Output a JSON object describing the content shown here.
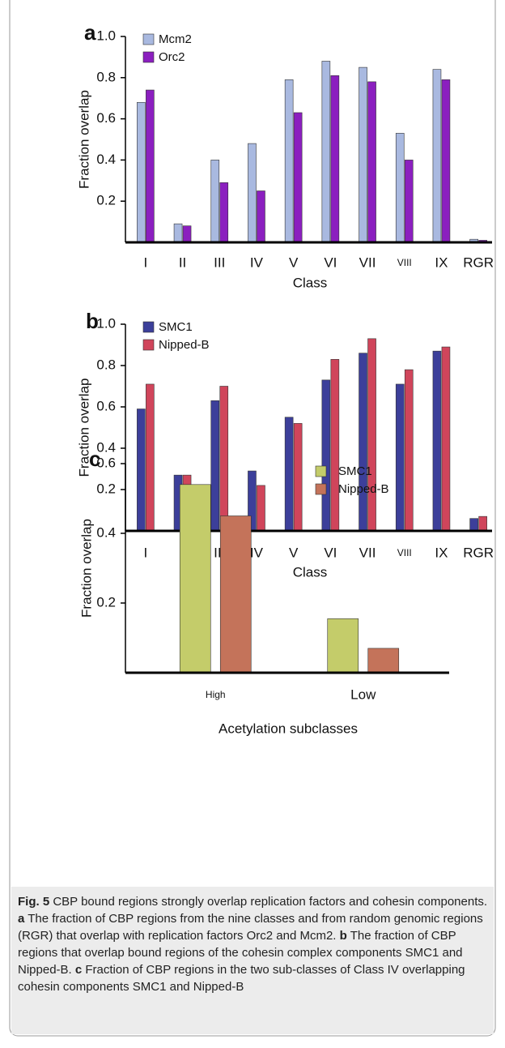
{
  "chart_data": [
    {
      "type": "bar",
      "panel_label": "a",
      "ylabel": "Fraction overlap",
      "xlabel": "Class",
      "categories": [
        "I",
        "II",
        "III",
        "IV",
        "V",
        "VI",
        "VII",
        "VIII",
        "IX",
        "RGR"
      ],
      "series": [
        {
          "name": "Mcm2",
          "color": "#a9b9e0",
          "values": [
            0.68,
            0.09,
            0.4,
            0.48,
            0.79,
            0.88,
            0.85,
            0.53,
            0.84,
            0.015
          ]
        },
        {
          "name": "Orc2",
          "color": "#8b1fbf",
          "values": [
            0.74,
            0.08,
            0.29,
            0.25,
            0.63,
            0.81,
            0.78,
            0.4,
            0.79,
            0.01
          ]
        }
      ],
      "ylim": [
        0,
        1
      ],
      "yticks": [
        0.2,
        0.4,
        0.6,
        0.8,
        {
          "value": 1,
          "label": "1.0"
        }
      ],
      "legend": "upper left"
    },
    {
      "type": "bar",
      "panel_label": "b",
      "ylabel": "Fraction overlap",
      "xlabel": "Class",
      "categories": [
        "I",
        "II",
        "III",
        "IV",
        "V",
        "VI",
        "VII",
        "VIII",
        "IX",
        "RGR"
      ],
      "series": [
        {
          "name": "SMC1",
          "color": "#3c3f9a",
          "values": [
            0.59,
            0.27,
            0.63,
            0.29,
            0.55,
            0.73,
            0.86,
            0.71,
            0.87,
            0.06
          ]
        },
        {
          "name": "Nipped-B",
          "color": "#d0455b",
          "values": [
            0.71,
            0.27,
            0.7,
            0.22,
            0.52,
            0.83,
            0.93,
            0.78,
            0.89,
            0.07
          ]
        }
      ],
      "ylim": [
        0,
        1
      ],
      "yticks": [
        0.2,
        0.4,
        0.6,
        0.8,
        {
          "value": 1,
          "label": "1.0"
        }
      ],
      "legend": "upper left"
    },
    {
      "type": "bar",
      "panel_label": "c",
      "ylabel": "Fraction overlap",
      "xlabel": "Acetylation subclasses",
      "categories": [
        "High",
        "Low"
      ],
      "series": [
        {
          "name": "SMC1",
          "color": "#c4cc6a",
          "values": [
            0.54,
            0.155
          ]
        },
        {
          "name": "Nipped-B",
          "color": "#c4735a",
          "values": [
            0.45,
            0.07
          ]
        }
      ],
      "ylim": [
        0,
        0.6
      ],
      "yticks": [
        0.2,
        0.4,
        0.6
      ],
      "legend": "upper right"
    }
  ],
  "caption": {
    "label": "Fig. 5",
    "text": "CBP bound regions strongly overlap replication factors and cohesin components.",
    "parts": [
      {
        "label": "a",
        "text": "The fraction of CBP regions from the nine classes and from random genomic regions (RGR) that overlap with replication factors Orc2 and Mcm2."
      },
      {
        "label": "b",
        "text": "The fraction of CBP regions that overlap bound regions of the cohesin complex components SMC1 and Nipped-B."
      },
      {
        "label": "c",
        "text": "Fraction of CBP regions in the two sub-classes of Class IV overlapping cohesin components SMC1 and Nipped-B"
      }
    ]
  }
}
